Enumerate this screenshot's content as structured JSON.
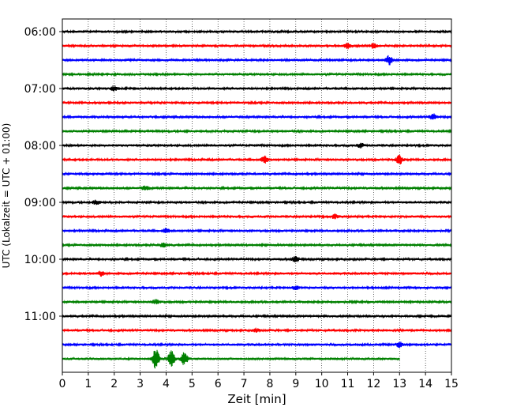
{
  "chart_data": {
    "type": "line",
    "xlabel": "Zeit  [min]",
    "ylabel": "UTC (Lokalzeit = UTC + 01:00)",
    "xlim": [
      0,
      15
    ],
    "x_ticks": [
      "0",
      "1",
      "2",
      "3",
      "4",
      "5",
      "6",
      "7",
      "8",
      "9",
      "10",
      "11",
      "12",
      "13",
      "14",
      "15"
    ],
    "y_tick_labels": [
      "06:00",
      "07:00",
      "08:00",
      "09:00",
      "10:00",
      "11:00"
    ],
    "grid": "vertical dotted lines at each minute",
    "trace_interval_minutes": 15,
    "color_cycle": [
      "#000000",
      "#ff0000",
      "#0000ff",
      "#008000"
    ],
    "traces": [
      {
        "start": "06:00",
        "color": "#000000",
        "end_min": 15,
        "events": []
      },
      {
        "start": "06:15",
        "color": "#ff0000",
        "end_min": 15,
        "events": [
          {
            "t": 11.0,
            "amp": 0.35
          },
          {
            "t": 12.0,
            "amp": 0.3
          }
        ]
      },
      {
        "start": "06:30",
        "color": "#0000ff",
        "end_min": 15,
        "events": [
          {
            "t": 12.6,
            "amp": 0.6
          }
        ]
      },
      {
        "start": "06:45",
        "color": "#008000",
        "end_min": 15,
        "events": []
      },
      {
        "start": "07:00",
        "color": "#000000",
        "end_min": 15,
        "events": [
          {
            "t": 2.0,
            "amp": 0.3
          }
        ]
      },
      {
        "start": "07:15",
        "color": "#ff0000",
        "end_min": 15,
        "events": []
      },
      {
        "start": "07:30",
        "color": "#0000ff",
        "end_min": 15,
        "events": [
          {
            "t": 14.3,
            "amp": 0.35
          }
        ]
      },
      {
        "start": "07:45",
        "color": "#008000",
        "end_min": 15,
        "events": []
      },
      {
        "start": "08:00",
        "color": "#000000",
        "end_min": 15,
        "events": [
          {
            "t": 11.5,
            "amp": 0.25
          }
        ]
      },
      {
        "start": "08:15",
        "color": "#ff0000",
        "end_min": 15,
        "events": [
          {
            "t": 7.8,
            "amp": 0.45
          },
          {
            "t": 13.0,
            "amp": 0.6
          }
        ]
      },
      {
        "start": "08:30",
        "color": "#0000ff",
        "end_min": 15,
        "events": []
      },
      {
        "start": "08:45",
        "color": "#008000",
        "end_min": 15,
        "events": [
          {
            "t": 3.2,
            "amp": 0.3
          }
        ]
      },
      {
        "start": "09:00",
        "color": "#000000",
        "end_min": 15,
        "events": [
          {
            "t": 1.3,
            "amp": 0.25
          }
        ]
      },
      {
        "start": "09:15",
        "color": "#ff0000",
        "end_min": 15,
        "events": [
          {
            "t": 10.5,
            "amp": 0.25
          }
        ]
      },
      {
        "start": "09:30",
        "color": "#0000ff",
        "end_min": 15,
        "events": [
          {
            "t": 4.0,
            "amp": 0.25
          }
        ]
      },
      {
        "start": "09:45",
        "color": "#008000",
        "end_min": 15,
        "events": [
          {
            "t": 3.9,
            "amp": 0.25
          }
        ]
      },
      {
        "start": "10:00",
        "color": "#000000",
        "end_min": 15,
        "events": [
          {
            "t": 9.0,
            "amp": 0.35
          }
        ]
      },
      {
        "start": "10:15",
        "color": "#ff0000",
        "end_min": 15,
        "events": [
          {
            "t": 1.5,
            "amp": 0.3
          }
        ]
      },
      {
        "start": "10:30",
        "color": "#0000ff",
        "end_min": 15,
        "events": [
          {
            "t": 9.0,
            "amp": 0.25
          }
        ]
      },
      {
        "start": "10:45",
        "color": "#008000",
        "end_min": 15,
        "events": [
          {
            "t": 3.6,
            "amp": 0.3
          }
        ]
      },
      {
        "start": "11:00",
        "color": "#000000",
        "end_min": 15,
        "events": []
      },
      {
        "start": "11:15",
        "color": "#ff0000",
        "end_min": 15,
        "events": [
          {
            "t": 7.5,
            "amp": 0.25
          }
        ]
      },
      {
        "start": "11:30",
        "color": "#0000ff",
        "end_min": 15,
        "events": [
          {
            "t": 13.0,
            "amp": 0.35
          }
        ]
      },
      {
        "start": "11:45",
        "color": "#008000",
        "end_min": 13.0,
        "events": [
          {
            "t": 3.6,
            "amp": 1.4
          },
          {
            "t": 4.2,
            "amp": 1.1
          },
          {
            "t": 4.7,
            "amp": 0.9
          }
        ]
      }
    ]
  }
}
